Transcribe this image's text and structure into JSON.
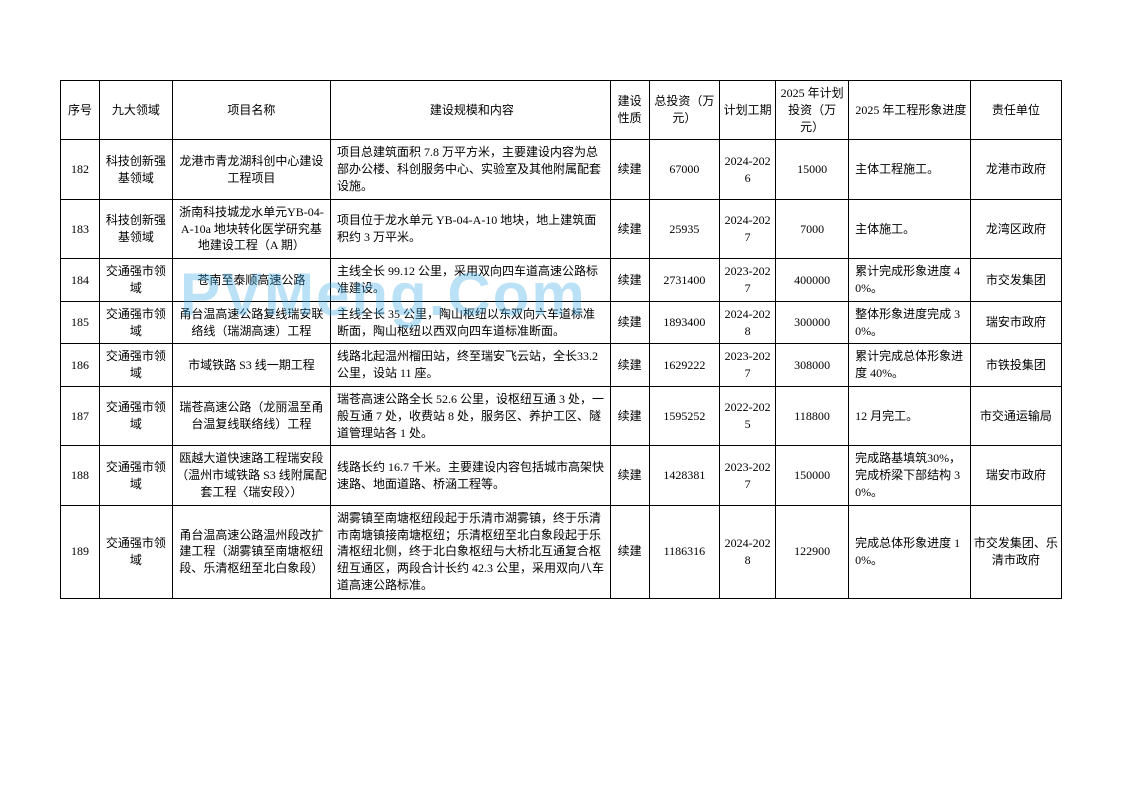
{
  "watermark": "PVMeng.Com",
  "table": {
    "columns": [
      "序号",
      "九大领域",
      "项目名称",
      "建设规模和内容",
      "建设性质",
      "总投资（万元）",
      "计划工期",
      "2025 年计划投资（万元）",
      "2025 年工程形象进度",
      "责任单位"
    ],
    "rows": [
      {
        "seq": "182",
        "domain": "科技创新强基领域",
        "name": "龙港市青龙湖科创中心建设工程项目",
        "content": "项目总建筑面积 7.8 万平方米，主要建设内容为总部办公楼、科创服务中心、实验室及其他附属配套设施。",
        "nature": "续建",
        "invest": "67000",
        "period": "2024-2026",
        "plan": "15000",
        "progress": "主体工程施工。",
        "unit": "龙港市政府"
      },
      {
        "seq": "183",
        "domain": "科技创新强基领域",
        "name": "浙南科技城龙水单元YB-04-A-10a 地块转化医学研究基地建设工程（A 期）",
        "content": "项目位于龙水单元 YB-04-A-10 地块，地上建筑面积约 3 万平米。",
        "nature": "续建",
        "invest": "25935",
        "period": "2024-2027",
        "plan": "7000",
        "progress": "主体施工。",
        "unit": "龙湾区政府"
      },
      {
        "seq": "184",
        "domain": "交通强市领域",
        "name": "苍南至泰顺高速公路",
        "content": "主线全长 99.12 公里，采用双向四车道高速公路标准建设。",
        "nature": "续建",
        "invest": "2731400",
        "period": "2023-2027",
        "plan": "400000",
        "progress": "累计完成形象进度 40%。",
        "unit": "市交发集团"
      },
      {
        "seq": "185",
        "domain": "交通强市领域",
        "name": "甬台温高速公路复线瑞安联络线（瑞湖高速）工程",
        "content": "主线全长 35 公里，陶山枢纽以东双向六车道标准断面，陶山枢纽以西双向四车道标准断面。",
        "nature": "续建",
        "invest": "1893400",
        "period": "2024-2028",
        "plan": "300000",
        "progress": "整体形象进度完成 30%。",
        "unit": "瑞安市政府"
      },
      {
        "seq": "186",
        "domain": "交通强市领域",
        "name": "市域铁路 S3 线一期工程",
        "content": "线路北起温州榴田站，终至瑞安飞云站，全长33.2 公里，设站 11 座。",
        "nature": "续建",
        "invest": "1629222",
        "period": "2023-2027",
        "plan": "308000",
        "progress": "累计完成总体形象进度 40%。",
        "unit": "市铁投集团"
      },
      {
        "seq": "187",
        "domain": "交通强市领域",
        "name": "瑞苍高速公路（龙丽温至甬台温复线联络线）工程",
        "content": "瑞苍高速公路全长 52.6 公里，设枢纽互通 3 处，一般互通 7 处，收费站 8 处，服务区、养护工区、隧道管理站各 1 处。",
        "nature": "续建",
        "invest": "1595252",
        "period": "2022-2025",
        "plan": "118800",
        "progress": "12 月完工。",
        "unit": "市交通运输局"
      },
      {
        "seq": "188",
        "domain": "交通强市领域",
        "name": "瓯越大道快速路工程瑞安段（温州市域铁路 S3 线附属配套工程〈瑞安段〉）",
        "content": "线路长约 16.7 千米。主要建设内容包括城市高架快速路、地面道路、桥涵工程等。",
        "nature": "续建",
        "invest": "1428381",
        "period": "2023-2027",
        "plan": "150000",
        "progress": "完成路基填筑30%，完成桥梁下部结构 30%。",
        "unit": "瑞安市政府"
      },
      {
        "seq": "189",
        "domain": "交通强市领域",
        "name": "甬台温高速公路温州段改扩建工程（湖雾镇至南塘枢纽段、乐清枢纽至北白象段）",
        "content": "湖雾镇至南塘枢纽段起于乐清市湖雾镇，终于乐清市南塘镇接南塘枢纽；乐清枢纽至北白象段起于乐清枢纽北侧，终于北白象枢纽与大桥北互通复合枢纽互通区，两段合计长约 42.3 公里，采用双向八车道高速公路标准。",
        "nature": "续建",
        "invest": "1186316",
        "period": "2024-2028",
        "plan": "122900",
        "progress": "完成总体形象进度 10%。",
        "unit": "市交发集团、乐清市政府"
      }
    ]
  }
}
